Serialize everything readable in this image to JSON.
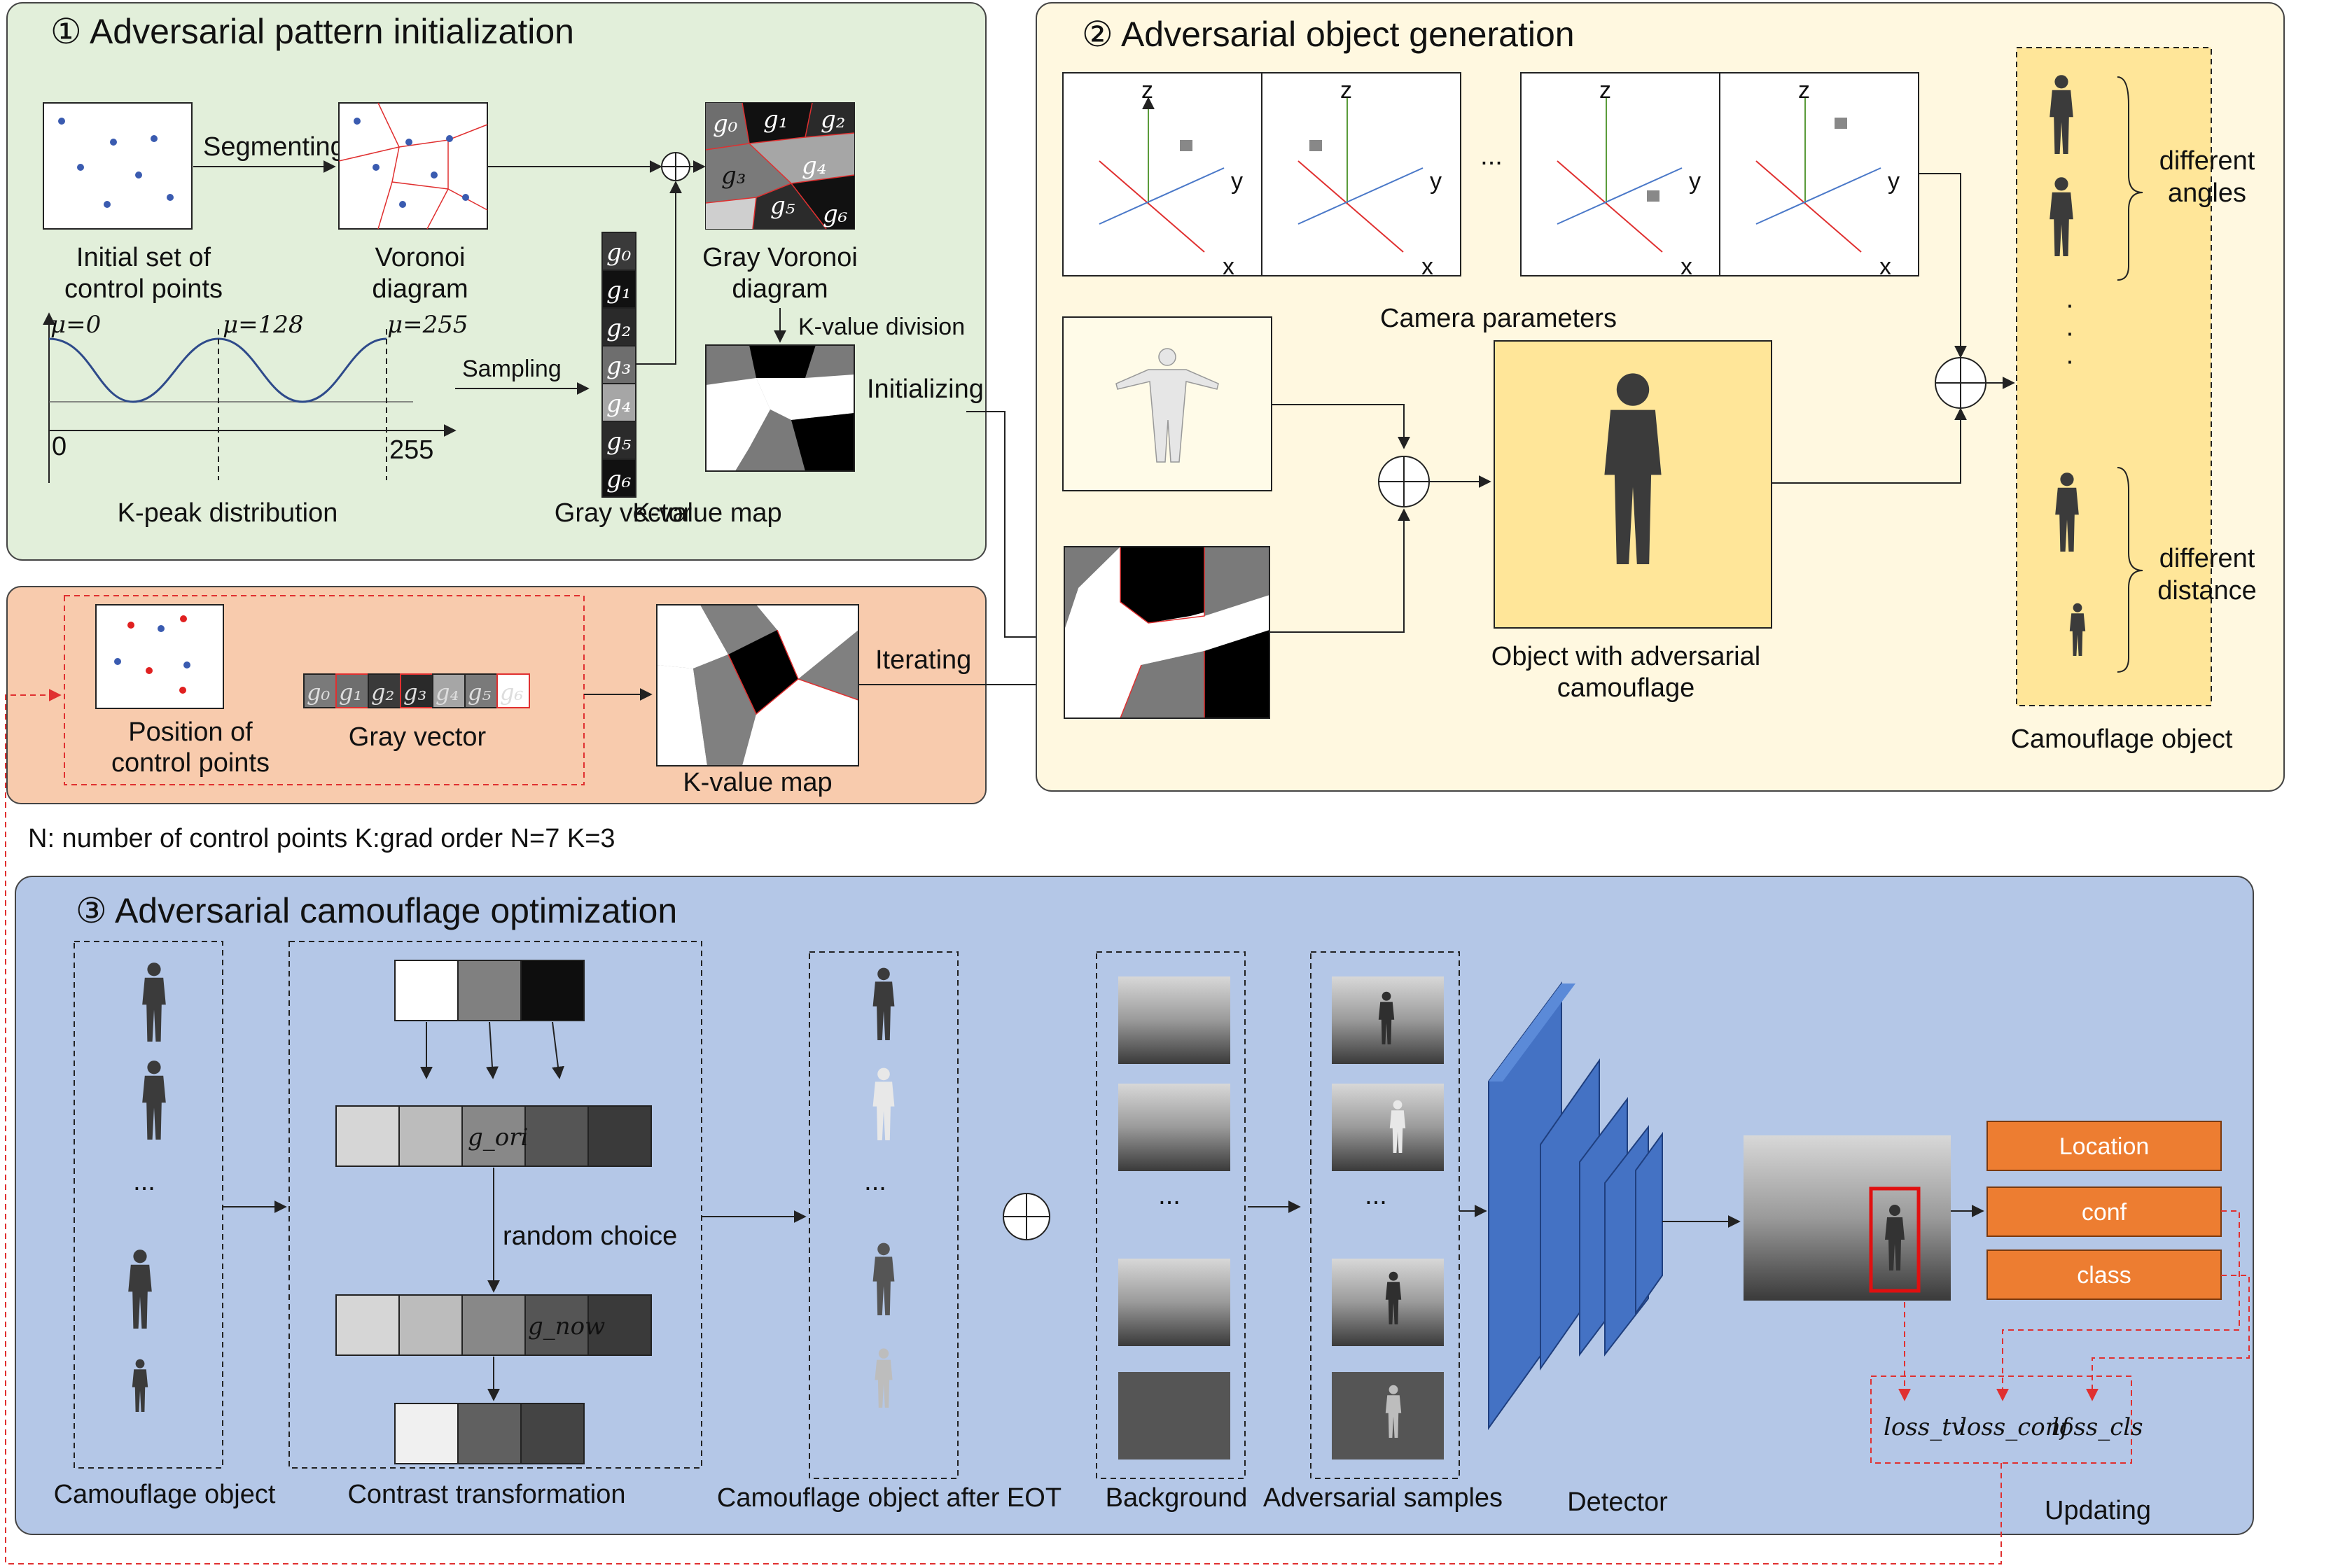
{
  "sec1": {
    "title": "① Adversarial pattern initialization",
    "initial_l1": "Initial set of",
    "initial_l2": "control points",
    "segmenting": "Segmenting",
    "voronoi_l1": "Voronoi",
    "voronoi_l2": "diagram",
    "gray_voronoi_l1": "Gray Voronoi",
    "gray_voronoi_l2": "diagram",
    "kvalue_division": "K-value division",
    "sampling": "Sampling",
    "initializing": "Initializing",
    "mu0": "μ=0",
    "mu128": "μ=128",
    "mu255": "μ=255",
    "tick0": "0",
    "tick255": "255",
    "kpeak": "K-peak distribution",
    "gray_vector": "Gray vector",
    "kvalue_map": "K-value map",
    "g_labels": [
      "g0",
      "g1",
      "g2",
      "g3",
      "g4",
      "g5",
      "g6"
    ]
  },
  "iter": {
    "position_l1": "Position of",
    "position_l2": "control points",
    "gray_vector": "Gray vector",
    "kvalue_map": "K-value map",
    "iterating": "Iterating"
  },
  "note": "N: number of control points K:grad order  N=7 K=3",
  "sec2": {
    "title": "② Adversarial object generation",
    "axis_z": "z",
    "axis_y": "y",
    "axis_x": "x",
    "ellipsis": "...",
    "camera": "Camera parameters",
    "object_l1": "Object with adversarial",
    "object_l2": "camouflage",
    "diff_angles_l1": "different",
    "diff_angles_l2": "angles",
    "diff_dist_l1": "different",
    "diff_dist_l2": "distance",
    "camo_object": "Camouflage object",
    "vdots": "·"
  },
  "sec3": {
    "title": "③ Adversarial camouflage optimization",
    "camo_object": "Camouflage object",
    "contrast": "Contrast transformation",
    "random_choice": "random choice",
    "g_ori": "g_ori",
    "g_now": "g_now",
    "after_eot": "Camouflage object after EOT",
    "background": "Background",
    "adv_samples": "Adversarial samples",
    "detector": "Detector",
    "updating": "Updating",
    "ellipsis": "...",
    "location": "Location",
    "conf": "conf",
    "class": "class",
    "loss_tv": "loss_tv",
    "loss_conf": "loss_conf",
    "loss_cls": "loss_cls"
  },
  "colors": {
    "green_panel": "#e2efda",
    "orange_panel": "#f8cbad",
    "yellow_panel": "#fff8e0",
    "blue_panel": "#b4c7e7",
    "gold_box": "#ffe699",
    "orange_button": "#ed7d31",
    "cnn_blue": "#2f55a8",
    "red_dash": "#e03030"
  }
}
